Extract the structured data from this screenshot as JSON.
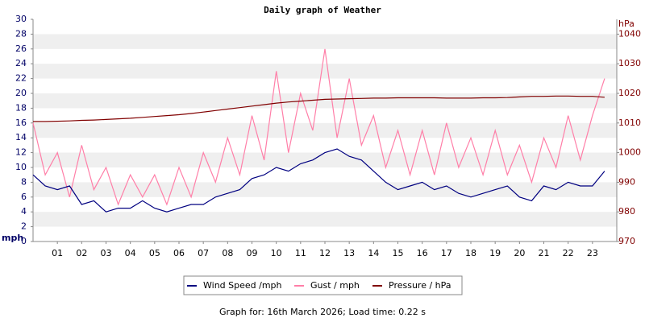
{
  "chart_data": {
    "type": "line",
    "title": "Daily graph of Weather",
    "ylabel": "mph",
    "y2label": "hPa",
    "x": [
      0,
      0.5,
      1,
      1.5,
      2,
      2.5,
      3,
      3.5,
      4,
      4.5,
      5,
      5.5,
      6,
      6.5,
      7,
      7.5,
      8,
      8.5,
      9,
      9.5,
      10,
      10.5,
      11,
      11.5,
      12,
      12.5,
      13,
      13.5,
      14,
      14.5,
      15,
      15.5,
      16,
      16.5,
      17,
      17.5,
      18,
      18.5,
      19,
      19.5,
      20,
      20.5,
      21,
      21.5,
      22,
      22.5,
      23,
      23.5
    ],
    "xlim": [
      0,
      24
    ],
    "xticks": [
      {
        "value": 1,
        "label": "01"
      },
      {
        "value": 2,
        "label": "02"
      },
      {
        "value": 3,
        "label": "03"
      },
      {
        "value": 4,
        "label": "04"
      },
      {
        "value": 5,
        "label": "05"
      },
      {
        "value": 6,
        "label": "06"
      },
      {
        "value": 7,
        "label": "07"
      },
      {
        "value": 8,
        "label": "08"
      },
      {
        "value": 9,
        "label": "09"
      },
      10,
      11,
      12,
      13,
      14,
      15,
      16,
      17,
      18,
      19,
      20,
      21,
      22,
      23
    ],
    "ylim": [
      0,
      30
    ],
    "yticks": [
      0,
      2,
      4,
      6,
      8,
      10,
      12,
      14,
      16,
      18,
      20,
      22,
      24,
      26,
      28,
      30
    ],
    "y2lim": [
      970,
      1045
    ],
    "y2ticks": [
      970,
      980,
      990,
      1000,
      1010,
      1020,
      1030,
      1040
    ],
    "grid": true,
    "legend": "bottom",
    "series": [
      {
        "name": "Gust / mph",
        "color": "#ff7fa8",
        "values": [
          16,
          9,
          12,
          6,
          13,
          7,
          10,
          5,
          9,
          6,
          9,
          5,
          10,
          6,
          12,
          8,
          14,
          9,
          17,
          11,
          23,
          12,
          20,
          15,
          26,
          14,
          22,
          13,
          17,
          10,
          15,
          9,
          15,
          9,
          16,
          10,
          14,
          9,
          15,
          9,
          13,
          8,
          14,
          10,
          17,
          11,
          17,
          22
        ]
      },
      {
        "name": "Wind Speed /mph",
        "color": "#000080",
        "values": [
          9,
          7.5,
          7,
          7.5,
          5,
          5.5,
          4,
          4.5,
          4.5,
          5.5,
          4.5,
          4,
          4.5,
          5,
          5,
          6,
          6.5,
          7,
          8.5,
          9,
          10,
          9.5,
          10.5,
          11,
          12,
          12.5,
          11.5,
          11,
          9.5,
          8,
          7,
          7.5,
          8,
          7,
          7.5,
          6.5,
          6,
          6.5,
          7,
          7.5,
          6,
          5.5,
          7.5,
          7,
          8,
          7.5,
          7.5,
          9.5
        ]
      },
      {
        "name": "Pressure / hPa",
        "color": "#800000",
        "axis": "y2",
        "values": [
          1010.5,
          1010.5,
          1010.6,
          1010.7,
          1010.9,
          1011,
          1011.2,
          1011.4,
          1011.6,
          1011.9,
          1012.2,
          1012.5,
          1012.8,
          1013.2,
          1013.7,
          1014.2,
          1014.7,
          1015.2,
          1015.7,
          1016.2,
          1016.7,
          1017.1,
          1017.4,
          1017.7,
          1018,
          1018.1,
          1018.2,
          1018.3,
          1018.4,
          1018.4,
          1018.5,
          1018.5,
          1018.5,
          1018.5,
          1018.4,
          1018.4,
          1018.4,
          1018.5,
          1018.5,
          1018.6,
          1018.8,
          1019,
          1019,
          1019.1,
          1019.1,
          1019,
          1019,
          1018.7
        ]
      }
    ],
    "footer": "Graph for: 16th March 2026; Load time: 0.22 s"
  }
}
